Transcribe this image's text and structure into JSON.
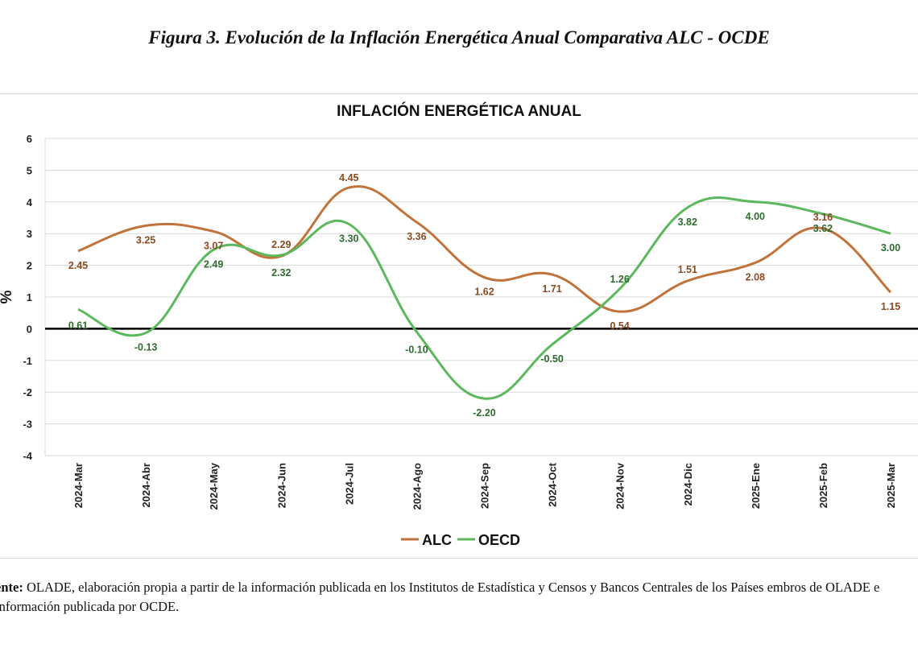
{
  "figure_title": "Figura 3. Evolución de la Inflación Energética Anual Comparativa ALC - OCDE",
  "chart_data": {
    "type": "line",
    "title": "INFLACIÓN ENERGÉTICA ANUAL",
    "xlabel": "",
    "ylabel": "%",
    "categories": [
      "2024-Mar",
      "2024-Abr",
      "2024-May",
      "2024-Jun",
      "2024-Jul",
      "2024-Ago",
      "2024-Sep",
      "2024-Oct",
      "2024-Nov",
      "2024-Dic",
      "2025-Ene",
      "2025-Feb",
      "2025-Mar"
    ],
    "ylim": [
      -4,
      6
    ],
    "yticks": [
      "6",
      "5",
      "4",
      "3",
      "2",
      "1",
      "0",
      "-1",
      "-2",
      "-3",
      "-4"
    ],
    "grid": "horizontal",
    "legend": "bottom-center",
    "series": [
      {
        "name": "ALC",
        "color": "#C0733A",
        "values": [
          2.45,
          3.25,
          3.07,
          2.29,
          4.45,
          3.36,
          1.62,
          1.71,
          0.54,
          1.51,
          2.08,
          3.16,
          1.15
        ],
        "labels": [
          "2.45",
          "3.25",
          "3.07",
          "2.29",
          "4.45",
          "3.36",
          "1.62",
          "1.71",
          "0.54",
          "1.51",
          "2.08",
          "3.16",
          "1.15"
        ]
      },
      {
        "name": "OECD",
        "color": "#5CB85C",
        "values": [
          0.61,
          -0.13,
          2.49,
          2.32,
          3.3,
          -0.1,
          -2.2,
          -0.5,
          1.26,
          3.82,
          4.0,
          3.62,
          3.0
        ],
        "labels": [
          "0.61",
          "-0.13",
          "2.49",
          "2.32",
          "3.30",
          "-0.10",
          "-2.20",
          "-0.50",
          "1.26",
          "3.82",
          "4.00",
          "3.62",
          "3.00"
        ]
      }
    ]
  },
  "source": {
    "label": "ente:",
    "text": " OLADE, elaboración propia a partir de la información publicada en los Institutos de Estadística y Censos y Bancos Centrales de los Países embros de OLADE e información publicada por OCDE."
  }
}
